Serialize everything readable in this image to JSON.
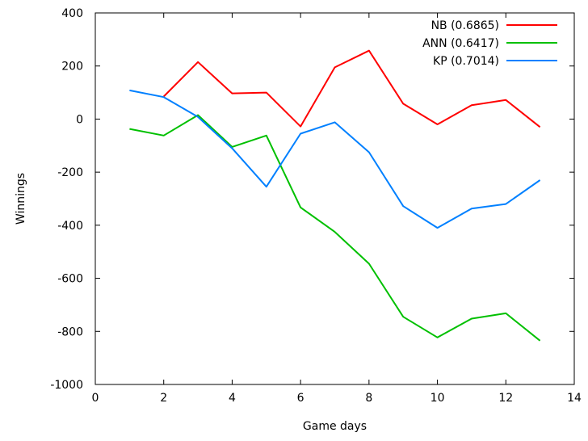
{
  "chart_data": {
    "type": "line",
    "xlabel": "Game days",
    "ylabel": "Winnings",
    "xlim": [
      0,
      14
    ],
    "ylim": [
      -1000,
      400
    ],
    "xticks": [
      0,
      2,
      4,
      6,
      8,
      10,
      12,
      14
    ],
    "yticks": [
      400,
      200,
      0,
      -200,
      -400,
      -600,
      -800,
      -1000
    ],
    "grid": false,
    "legend_position": "top-right",
    "series": [
      {
        "name": "NB (0.6865)",
        "color": "#ff0000",
        "x": [
          2,
          3,
          4,
          5,
          6,
          7,
          8,
          9,
          10,
          11,
          12,
          13
        ],
        "y": [
          85,
          215,
          97,
          100,
          -28,
          195,
          258,
          58,
          -20,
          52,
          72,
          -30
        ]
      },
      {
        "name": "ANN (0.6417)",
        "color": "#00c000",
        "x": [
          1,
          2,
          3,
          4,
          5,
          6,
          7,
          8,
          9,
          10,
          11,
          12,
          13
        ],
        "y": [
          -37,
          -62,
          15,
          -105,
          -62,
          -333,
          -425,
          -545,
          -745,
          -823,
          -752,
          -732,
          -835
        ]
      },
      {
        "name": "KP (0.7014)",
        "color": "#0080ff",
        "x": [
          1,
          2,
          3,
          4,
          5,
          6,
          7,
          8,
          9,
          10,
          11,
          12,
          13
        ],
        "y": [
          108,
          83,
          8,
          -110,
          -255,
          -55,
          -12,
          -125,
          -328,
          -410,
          -337,
          -320,
          -230
        ]
      }
    ]
  }
}
